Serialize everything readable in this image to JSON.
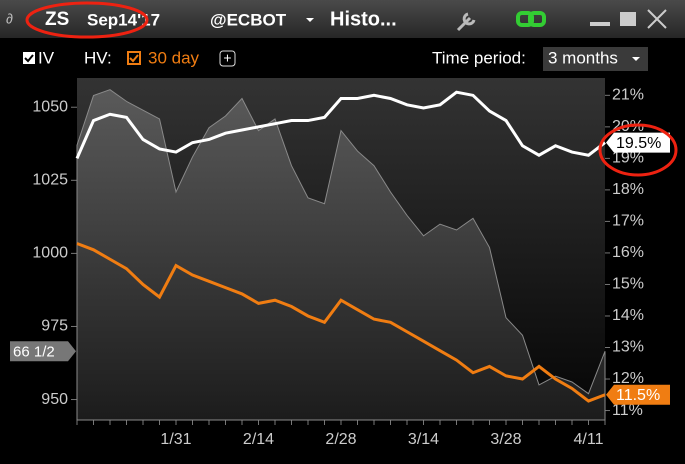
{
  "header": {
    "symbol": "ZS",
    "contract": "Sep14'17",
    "exchange": "@ECBOT",
    "title": "Histo..."
  },
  "toolbar": {
    "hv_label": "HV:",
    "add_button": "+",
    "period_label": "Time period:",
    "period_value": "3 months"
  },
  "chart_data": {
    "type": "line",
    "categories": [
      null,
      null,
      null,
      null,
      null,
      null,
      "1/31",
      null,
      null,
      null,
      null,
      "2/14",
      null,
      null,
      null,
      null,
      "2/28",
      null,
      null,
      null,
      null,
      "3/14",
      null,
      null,
      null,
      null,
      "3/28",
      null,
      null,
      null,
      null,
      "4/11",
      null
    ],
    "ylim": [
      943,
      1060
    ],
    "yticks": [
      950,
      975,
      1000,
      1025,
      1050
    ],
    "y2lim": [
      10.7,
      21.55
    ],
    "y2ticks": [
      {
        "value": 11,
        "label": "11%"
      },
      {
        "value": 12,
        "label": "12%"
      },
      {
        "value": 13,
        "label": "13%"
      },
      {
        "value": 14,
        "label": "14%"
      },
      {
        "value": 15,
        "label": "15%"
      },
      {
        "value": 16,
        "label": "16%"
      },
      {
        "value": 17,
        "label": "17%"
      },
      {
        "value": 18,
        "label": "18%"
      },
      {
        "value": 19,
        "label": "19%"
      },
      {
        "value": 20,
        "label": "20%"
      },
      {
        "value": 21,
        "label": "21%"
      }
    ],
    "series": [
      {
        "type": "area",
        "axis": "y",
        "color": "#8a8a8a",
        "values": [
          1037,
          1054,
          1056,
          1052,
          1049,
          1046,
          1021,
          1033,
          1043,
          1047,
          1053,
          1042,
          1046,
          1030,
          1019,
          1017,
          1042,
          1035,
          1030,
          1021,
          1013,
          1006,
          1010,
          1008,
          1012,
          1002,
          978,
          972,
          955,
          958,
          956,
          952,
          966.5
        ],
        "value_labels": [
          null,
          null,
          null,
          null,
          null,
          null,
          null,
          null,
          null,
          null,
          null,
          null,
          null,
          null,
          null,
          null,
          null,
          null,
          null,
          null,
          null,
          null,
          null,
          null,
          null,
          null,
          null,
          null,
          null,
          null,
          null,
          null,
          "66 1/2"
        ]
      },
      {
        "name": "IV",
        "axis": "y2",
        "color": "#ffffff",
        "values": [
          19.0,
          20.2,
          20.4,
          20.3,
          19.6,
          19.3,
          19.2,
          19.5,
          19.6,
          19.8,
          19.9,
          20.0,
          20.1,
          20.2,
          20.2,
          20.3,
          20.9,
          20.9,
          21.0,
          20.9,
          20.7,
          20.6,
          20.7,
          21.1,
          21.0,
          20.5,
          20.2,
          19.4,
          19.1,
          19.4,
          19.2,
          19.1,
          19.5
        ],
        "value_labels": [
          null,
          null,
          null,
          null,
          null,
          null,
          null,
          null,
          null,
          null,
          null,
          null,
          null,
          null,
          null,
          null,
          null,
          null,
          null,
          null,
          null,
          null,
          null,
          null,
          null,
          null,
          null,
          null,
          null,
          null,
          null,
          null,
          "19.5%"
        ]
      },
      {
        "name": "30 day",
        "axis": "y2",
        "color": "#f07d12",
        "values": [
          16.3,
          16.1,
          15.8,
          15.5,
          15.0,
          14.6,
          15.6,
          15.3,
          15.1,
          14.9,
          14.7,
          14.4,
          14.5,
          14.3,
          14.0,
          13.8,
          14.5,
          14.2,
          13.9,
          13.8,
          13.5,
          13.2,
          12.9,
          12.6,
          12.2,
          12.4,
          12.1,
          12.0,
          12.4,
          12.0,
          11.7,
          11.3,
          11.5
        ],
        "value_labels": [
          null,
          null,
          null,
          null,
          null,
          null,
          null,
          null,
          null,
          null,
          null,
          null,
          null,
          null,
          null,
          null,
          null,
          null,
          null,
          null,
          null,
          null,
          null,
          null,
          null,
          null,
          null,
          null,
          null,
          null,
          null,
          null,
          "11.5%"
        ]
      }
    ]
  }
}
